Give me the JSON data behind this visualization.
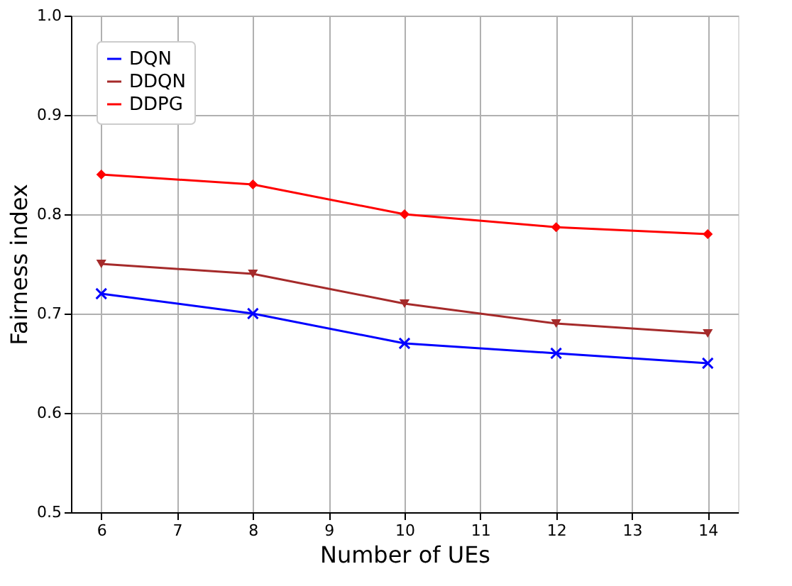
{
  "chart_data": {
    "type": "line",
    "xlabel": "Number of UEs",
    "ylabel": "Fairness index",
    "x": [
      6,
      8,
      10,
      12,
      14
    ],
    "series": [
      {
        "name": "DQN",
        "color": "#0000ff",
        "marker": "cross",
        "values": [
          0.72,
          0.7,
          0.67,
          0.66,
          0.65
        ]
      },
      {
        "name": "DDQN",
        "color": "#a52a2a",
        "marker": "triangle",
        "values": [
          0.75,
          0.74,
          0.71,
          0.69,
          0.68
        ]
      },
      {
        "name": "DDPG",
        "color": "#ff0000",
        "marker": "diamond",
        "values": [
          0.84,
          0.83,
          0.8,
          0.787,
          0.78
        ]
      }
    ],
    "xlim": [
      5.6,
      14.4
    ],
    "xticks": [
      6,
      7,
      8,
      9,
      10,
      11,
      12,
      13,
      14
    ],
    "ylim": [
      0.5,
      1.0
    ],
    "yticks": [
      0.5,
      0.6,
      0.7,
      0.8,
      0.9,
      {
        "value": 1.0,
        "label": "1.0"
      }
    ],
    "grid": true,
    "legend": "top left",
    "line_style": "solid"
  }
}
